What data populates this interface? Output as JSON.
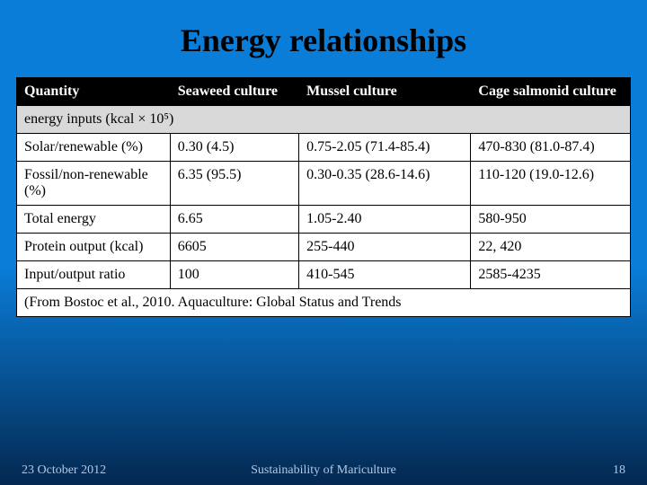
{
  "title": "Energy relationships",
  "table": {
    "headers": [
      "Quantity",
      "Seaweed culture",
      "Mussel culture",
      "Cage salmonid culture"
    ],
    "section_label": "energy inputs (kcal × 10⁵)",
    "rows": [
      {
        "label": "Solar/renewable (%)",
        "c1": "0.30 (4.5)",
        "c2": "0.75-2.05 (71.4-85.4)",
        "c3": "470-830 (81.0-87.4)"
      },
      {
        "label": "Fossil/non-renewable (%)",
        "c1": "6.35 (95.5)",
        "c2": "0.30-0.35 (28.6-14.6)",
        "c3": "110-120 (19.0-12.6)"
      },
      {
        "label": "Total energy",
        "c1": "6.65",
        "c2": "1.05-2.40",
        "c3": "580-950"
      },
      {
        "label": "Protein output (kcal)",
        "c1": "6605",
        "c2": "255-440",
        "c3": "22, 420"
      },
      {
        "label": "Input/output ratio",
        "c1": "100",
        "c2": "410-545",
        "c3": "2585-4235"
      }
    ],
    "citation": "(From Bostoc et al., 2010. Aquaculture: Global Status and Trends"
  },
  "footer": {
    "date": "23 October 2012",
    "title": "Sustainability of Mariculture",
    "page": "18"
  }
}
